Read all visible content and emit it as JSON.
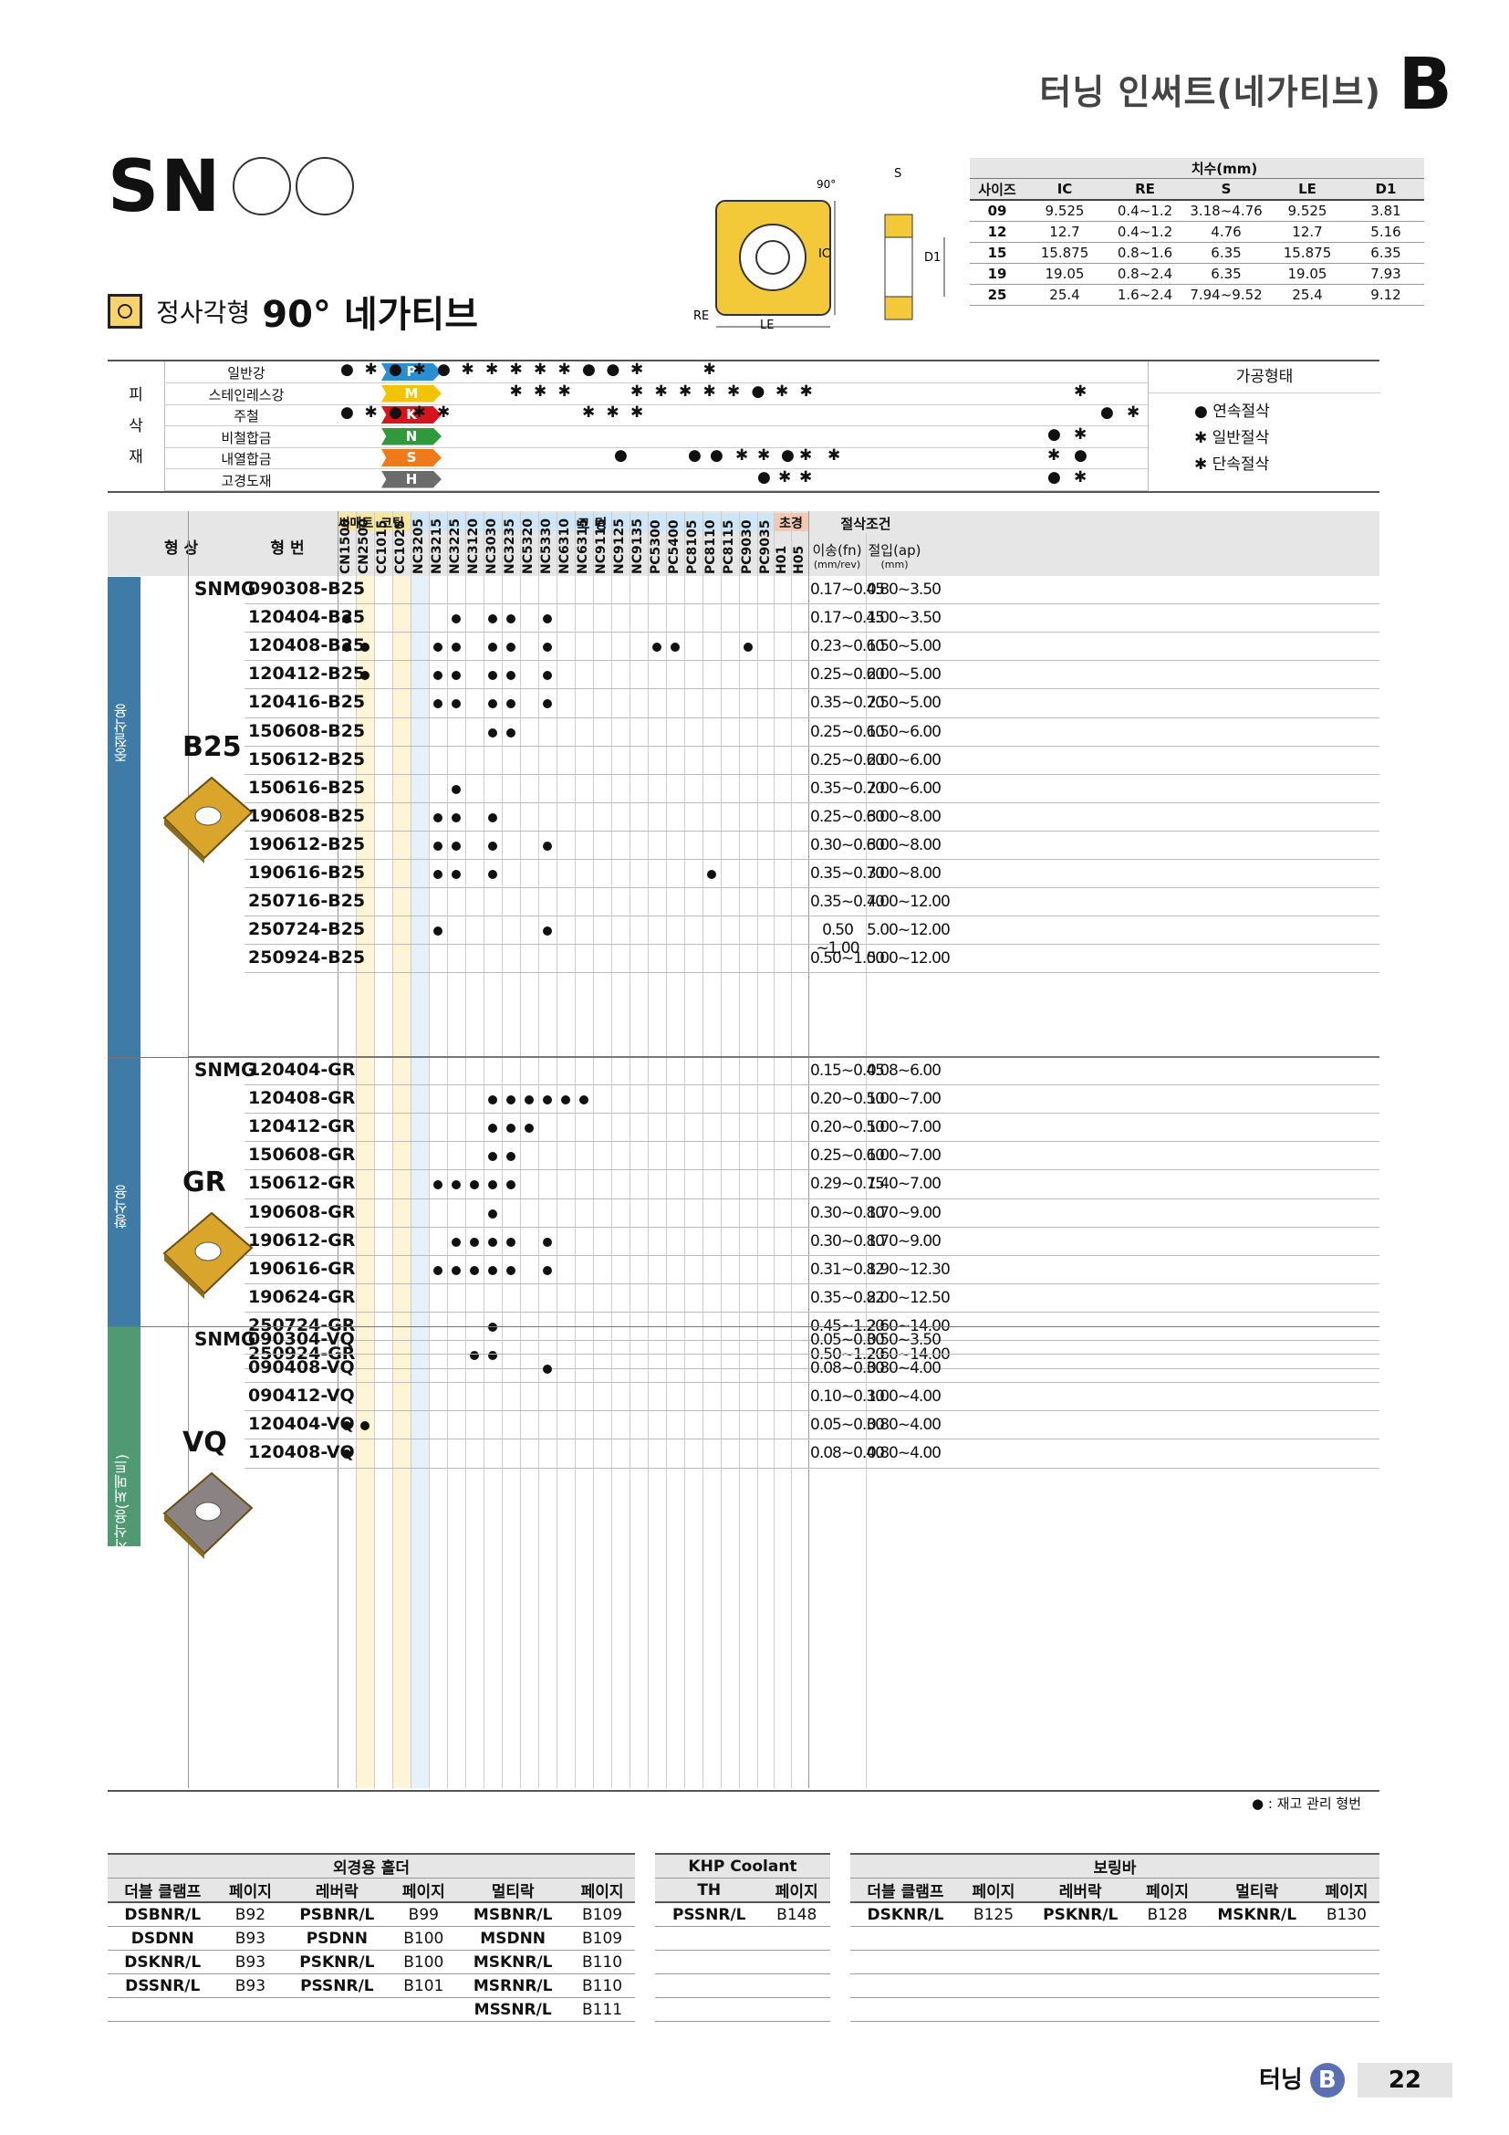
{
  "header": {
    "title": "터닝 인써트(네가티브)",
    "section_letter": "B"
  },
  "sn": {
    "title": "SN"
  },
  "subtitle": {
    "small": "정사각형",
    "big": "90° 네가티브"
  },
  "diagram": {
    "angle": "90°",
    "s": "S",
    "ic": "IC",
    "d1": "D1",
    "re": "RE",
    "le": "LE"
  },
  "dims": {
    "group_header": "치수(mm)",
    "headers": [
      "사이즈",
      "IC",
      "RE",
      "S",
      "LE",
      "D1"
    ],
    "rows": [
      [
        "09",
        "9.525",
        "0.4~1.2",
        "3.18~4.76",
        "9.525",
        "3.81"
      ],
      [
        "12",
        "12.7",
        "0.4~1.2",
        "4.76",
        "12.7",
        "5.16"
      ],
      [
        "15",
        "15.875",
        "0.8~1.6",
        "6.35",
        "15.875",
        "6.35"
      ],
      [
        "19",
        "19.05",
        "0.8~2.4",
        "6.35",
        "19.05",
        "7.93"
      ],
      [
        "25",
        "25.4",
        "1.6~2.4",
        "7.94~9.52",
        "25.4",
        "9.12"
      ]
    ]
  },
  "materials": {
    "side_label": [
      "피",
      "삭",
      "재"
    ],
    "rows": [
      {
        "name": "일반강",
        "code": "P",
        "color": "#2a8fd0",
        "syms": "●✱●✱●✱✱✱✱✱●●✱··✱····················"
      },
      {
        "name": "스테인레스강",
        "code": "M",
        "color": "#f2c400",
        "syms": "·······✱✱✱··✱✱✱✱✱●✱✱······✱··"
      },
      {
        "name": "주철",
        "code": "K",
        "color": "#d8131b",
        "syms": "●✱●✱✱·····✱✱✱··············●✱"
      },
      {
        "name": "비철합금",
        "code": "N",
        "color": "#2e9a3c",
        "syms": "●✱"
      },
      {
        "name": "내열합금",
        "code": "S",
        "color": "#ef7a1a",
        "syms": "●●●✱✱●✱✱●✱"
      },
      {
        "name": "고경도재",
        "code": "H",
        "color": "#6b6b6b",
        "syms": "●✱✱●✱"
      }
    ],
    "legend_title": "가공형태",
    "legend": [
      "● 연속절삭",
      "✱ 일반절삭",
      "✱ 단속절삭"
    ]
  },
  "main": {
    "col_shape": "형  상",
    "col_type": "형  번",
    "group_cermet": "써메트",
    "group_coating_small": "코팅",
    "group_coating": "코  팅",
    "group_super": "초경",
    "group_cond": "절삭조건",
    "feed_label": "이송(fn)",
    "feed_unit": "(mm/rev)",
    "depth_label": "절입(ap)",
    "depth_unit": "(mm)",
    "grades": [
      "CN1500",
      "CN2500",
      "CC1015",
      "CC1025",
      "NC3205",
      "NC3215",
      "NC3225",
      "NC3120",
      "NC3030",
      "NC3235",
      "NC5320",
      "NC5330",
      "NC6310",
      "NC6315",
      "NC9115",
      "NC9125",
      "NC9135",
      "PC5300",
      "PC5400",
      "PC8105",
      "PC8110",
      "PC8115",
      "PC9030",
      "PC9035",
      "H01",
      "H05"
    ],
    "sections": [
      {
        "side": "중절삭용",
        "insert": "B25",
        "prefix": "SNMG",
        "rows": [
          {
            "code": "090308-B25",
            "dots": [],
            "feed": "0.17~0.45",
            "depth": "0.80~3.50"
          },
          {
            "code": "120404-B25",
            "dots": [
              0,
              6,
              8,
              9,
              11
            ],
            "feed": "0.17~0.45",
            "depth": "1.00~3.50"
          },
          {
            "code": "120408-B25",
            "dots": [
              0,
              1,
              5,
              6,
              8,
              9,
              11,
              17,
              18,
              22
            ],
            "feed": "0.23~0.60",
            "depth": "1.50~5.00"
          },
          {
            "code": "120412-B25",
            "dots": [
              1,
              5,
              6,
              8,
              9,
              11
            ],
            "feed": "0.25~0.60",
            "depth": "2.00~5.00"
          },
          {
            "code": "120416-B25",
            "dots": [
              5,
              6,
              8,
              9,
              11
            ],
            "feed": "0.35~0.70",
            "depth": "2.50~5.00"
          },
          {
            "code": "150608-B25",
            "dots": [
              8,
              9
            ],
            "feed": "0.25~0.60",
            "depth": "1.50~6.00"
          },
          {
            "code": "150612-B25",
            "dots": [],
            "feed": "0.25~0.60",
            "depth": "2.00~6.00"
          },
          {
            "code": "150616-B25",
            "dots": [
              6
            ],
            "feed": "0.35~0.70",
            "depth": "2.00~6.00"
          },
          {
            "code": "190608-B25",
            "dots": [
              5,
              6,
              8
            ],
            "feed": "0.25~0.60",
            "depth": "3.00~8.00"
          },
          {
            "code": "190612-B25",
            "dots": [
              5,
              6,
              8,
              11
            ],
            "feed": "0.30~0.60",
            "depth": "3.00~8.00"
          },
          {
            "code": "190616-B25",
            "dots": [
              5,
              6,
              8,
              20
            ],
            "feed": "0.35~0.70",
            "depth": "3.00~8.00"
          },
          {
            "code": "250716-B25",
            "dots": [],
            "feed": "0.35~0.70",
            "depth": "4.00~12.00"
          },
          {
            "code": "250724-B25",
            "dots": [
              5,
              11
            ],
            "feed": "0.50 ~1.00",
            "depth": "5.00~12.00"
          },
          {
            "code": "250924-B25",
            "dots": [],
            "feed": "0.50~1.00",
            "depth": "5.00~12.00"
          }
        ]
      },
      {
        "side": "황삭용",
        "insert": "GR",
        "prefix": "SNMG",
        "rows": [
          {
            "code": "120404-GR",
            "dots": [],
            "feed": "0.15~0.45",
            "depth": "0.08~6.00"
          },
          {
            "code": "120408-GR",
            "dots": [
              8,
              9,
              10,
              11,
              12,
              13
            ],
            "feed": "0.20~0.50",
            "depth": "1.00~7.00"
          },
          {
            "code": "120412-GR",
            "dots": [
              8,
              9,
              10
            ],
            "feed": "0.20~0.50",
            "depth": "1.00~7.00"
          },
          {
            "code": "150608-GR",
            "dots": [
              8,
              9
            ],
            "feed": "0.25~0.60",
            "depth": "1.00~7.00"
          },
          {
            "code": "150612-GR",
            "dots": [
              5,
              6,
              7,
              8,
              9
            ],
            "feed": "0.29~0.75",
            "depth": "1.40~7.00"
          },
          {
            "code": "190608-GR",
            "dots": [
              8
            ],
            "feed": "0.30~0.80",
            "depth": "1.70~9.00"
          },
          {
            "code": "190612-GR",
            "dots": [
              6,
              7,
              8,
              9,
              11
            ],
            "feed": "0.30~0.80",
            "depth": "1.70~9.00"
          },
          {
            "code": "190616-GR",
            "dots": [
              5,
              6,
              7,
              8,
              9,
              11
            ],
            "feed": "0.31~0.82",
            "depth": "1.90~12.30"
          },
          {
            "code": "190624-GR",
            "dots": [],
            "feed": "0.35~0.82",
            "depth": "2.00~12.50"
          },
          {
            "code": "250724-GR",
            "dots": [
              8
            ],
            "feed": "0.45~1.20",
            "depth": "2.60~14.00"
          },
          {
            "code": "250924-GR",
            "dots": [
              7,
              8
            ],
            "feed": "0.50~1.20",
            "depth": "2.60~14.00"
          }
        ]
      },
      {
        "side": "중사삭용(써메트)",
        "insert": "VQ",
        "prefix": "SNMG",
        "rows": [
          {
            "code": "090304-VQ",
            "dots": [],
            "feed": "0.05~0.30",
            "depth": "0.50~3.50"
          },
          {
            "code": "090408-VQ",
            "dots": [
              11
            ],
            "feed": "0.08~0.30",
            "depth": "0.80~4.00"
          },
          {
            "code": "090412-VQ",
            "dots": [],
            "feed": "0.10~0.30",
            "depth": "1.00~4.00"
          },
          {
            "code": "120404-VQ",
            "dots": [
              0,
              1
            ],
            "feed": "0.05~0.30",
            "depth": "0.80~4.00"
          },
          {
            "code": "120408-VQ",
            "dots": [
              0
            ],
            "feed": "0.08~0.40",
            "depth": "0.80~4.00"
          }
        ]
      }
    ],
    "stock_note": "● : 재고 관리 형번"
  },
  "holders": {
    "ext_title": "외경용 홀더",
    "ext_headers": [
      "더블 클램프",
      "페이지",
      "레버락",
      "페이지",
      "멀티락",
      "페이지"
    ],
    "ext_rows": [
      [
        "DSBNR/L",
        "B92",
        "PSBNR/L",
        "B99",
        "MSBNR/L",
        "B109"
      ],
      [
        "DSDNN",
        "B93",
        "PSDNN",
        "B100",
        "MSDNN",
        "B109"
      ],
      [
        "DSKNR/L",
        "B93",
        "PSKNR/L",
        "B100",
        "MSKNR/L",
        "B110"
      ],
      [
        "DSSNR/L",
        "B93",
        "PSSNR/L",
        "B101",
        "MSRNR/L",
        "B110"
      ],
      [
        "",
        "",
        "",
        "",
        "MSSNR/L",
        "B111"
      ]
    ],
    "khp_title": "KHP Coolant",
    "khp_headers": [
      "TH",
      "페이지"
    ],
    "khp_rows": [
      [
        "PSSNR/L",
        "B148"
      ],
      [
        "",
        ""
      ],
      [
        "",
        ""
      ],
      [
        "",
        ""
      ],
      [
        "",
        ""
      ]
    ],
    "bore_title": "보링바",
    "bore_headers": [
      "더블 클램프",
      "페이지",
      "레버락",
      "페이지",
      "멀티락",
      "페이지"
    ],
    "bore_rows": [
      [
        "DSKNR/L",
        "B125",
        "PSKNR/L",
        "B128",
        "MSKNR/L",
        "B130"
      ],
      [
        "",
        "",
        "",
        "",
        "",
        ""
      ],
      [
        "",
        "",
        "",
        "",
        "",
        ""
      ],
      [
        "",
        "",
        "",
        "",
        "",
        ""
      ],
      [
        "",
        "",
        "",
        "",
        "",
        ""
      ]
    ]
  },
  "footer": {
    "label": "터닝",
    "letter": "B",
    "page": "22"
  }
}
